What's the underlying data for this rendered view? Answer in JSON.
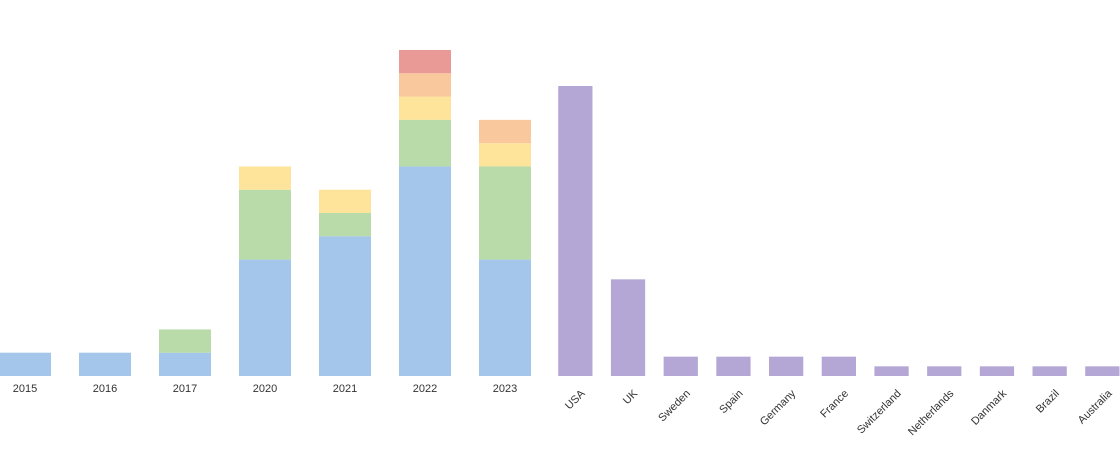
{
  "chart_data": [
    {
      "type": "bar",
      "stacked": true,
      "categories": [
        "2015",
        "2016",
        "2017",
        "2020",
        "2021",
        "2022",
        "2023"
      ],
      "series": [
        {
          "color": "#a3c6ea",
          "values": [
            1,
            1,
            1,
            5,
            6,
            9,
            5
          ]
        },
        {
          "color": "#b8dba9",
          "values": [
            0,
            0,
            1,
            3,
            1,
            2,
            4
          ]
        },
        {
          "color": "#fde49a",
          "values": [
            0,
            0,
            0,
            1,
            1,
            1,
            1
          ]
        },
        {
          "color": "#f9c89c",
          "values": [
            0,
            0,
            0,
            0,
            0,
            1,
            1
          ]
        },
        {
          "color": "#e99a96",
          "values": [
            0,
            0,
            0,
            0,
            0,
            1,
            0
          ]
        }
      ],
      "ylim": [
        0,
        14
      ]
    },
    {
      "type": "bar",
      "categories": [
        "USA",
        "UK",
        "Sweden",
        "Spain",
        "Germany",
        "France",
        "Switzerland",
        "Netherlands",
        "Danmark",
        "Brazil",
        "Australia"
      ],
      "values": [
        30,
        10,
        2,
        2,
        2,
        2,
        1,
        1,
        1,
        1,
        1
      ],
      "color": "#b4a7d6",
      "ylim": [
        0,
        30
      ]
    }
  ]
}
